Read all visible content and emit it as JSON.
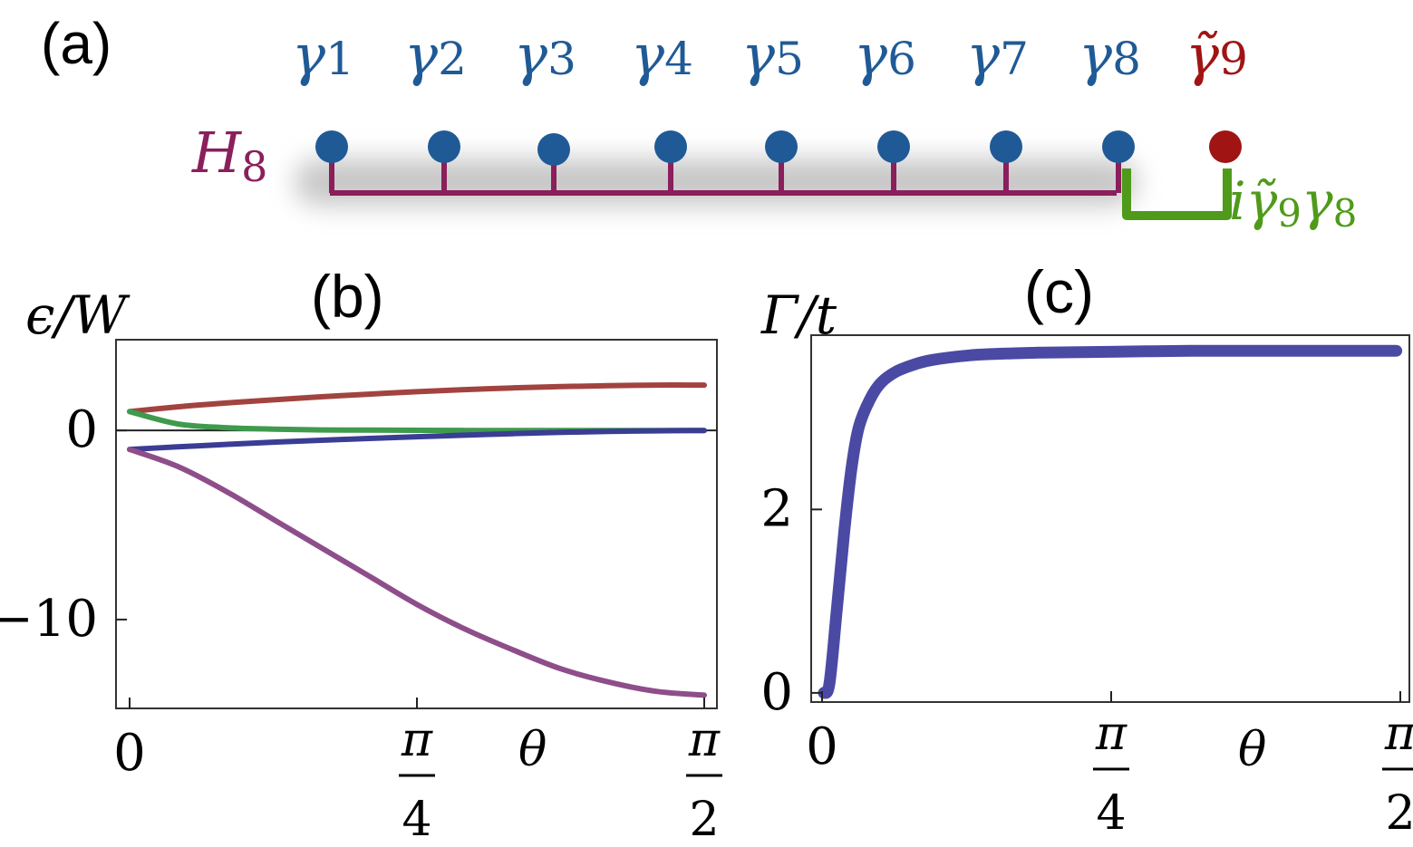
{
  "panel_a": {
    "label": "(a)",
    "hamiltonian": {
      "symbol": "H",
      "subscript": "8",
      "color": "#8a1f5c"
    },
    "sites": [
      {
        "symbol": "γ",
        "subscript": "1",
        "color": "#1f5a96"
      },
      {
        "symbol": "γ",
        "subscript": "2",
        "color": "#1f5a96"
      },
      {
        "symbol": "γ",
        "subscript": "3",
        "color": "#1f5a96"
      },
      {
        "symbol": "γ",
        "subscript": "4",
        "color": "#1f5a96"
      },
      {
        "symbol": "γ",
        "subscript": "5",
        "color": "#1f5a96"
      },
      {
        "symbol": "γ",
        "subscript": "6",
        "color": "#1f5a96"
      },
      {
        "symbol": "γ",
        "subscript": "7",
        "color": "#1f5a96"
      },
      {
        "symbol": "γ",
        "subscript": "8",
        "color": "#1f5a96"
      },
      {
        "symbol": "γ̃",
        "subscript": "9",
        "color": "#a01414"
      }
    ],
    "coupling": {
      "i": "i",
      "first": "γ̃",
      "first_sub": "9",
      "second": "γ",
      "second_sub": "8",
      "color": "#4f9a1a"
    }
  },
  "chart_data": [
    {
      "type": "line",
      "panel_label": "(b)",
      "xlabel": "θ",
      "ylabel": "ϵ/W",
      "xlim": [
        0,
        1.5708
      ],
      "ylim": [
        -14.7,
        4.8
      ],
      "x_ticks": [
        {
          "value": 0,
          "label": "0"
        },
        {
          "value": 0.7854,
          "num": "π",
          "den": "4"
        },
        {
          "value": 1.5708,
          "num": "π",
          "den": "2"
        }
      ],
      "y_ticks": [
        {
          "value": 0,
          "label": "0"
        },
        {
          "value": -10,
          "label": "−10"
        }
      ],
      "zero_line": true,
      "grid": false,
      "x": [
        0,
        0.1309,
        0.2618,
        0.3927,
        0.5236,
        0.6545,
        0.7854,
        0.9163,
        1.0472,
        1.1781,
        1.309,
        1.4399,
        1.5708
      ],
      "series": [
        {
          "color": "#a2433f",
          "values": [
            1.0,
            1.25,
            1.45,
            1.62,
            1.78,
            1.92,
            2.05,
            2.16,
            2.25,
            2.32,
            2.37,
            2.4,
            2.4
          ]
        },
        {
          "color": "#3f9a4e",
          "values": [
            1.0,
            0.35,
            0.15,
            0.07,
            0.03,
            0.02,
            0.01,
            0.0,
            0.0,
            0.0,
            0.0,
            0.0,
            0.0
          ]
        },
        {
          "color": "#3a3d94",
          "values": [
            -1.0,
            -0.87,
            -0.74,
            -0.62,
            -0.52,
            -0.42,
            -0.33,
            -0.25,
            -0.17,
            -0.1,
            -0.05,
            -0.02,
            0.0
          ]
        },
        {
          "color": "#8e4e8a",
          "values": [
            -1.0,
            -1.9,
            -3.2,
            -4.7,
            -6.2,
            -7.7,
            -9.2,
            -10.5,
            -11.6,
            -12.6,
            -13.3,
            -13.8,
            -14.0
          ]
        }
      ]
    },
    {
      "type": "line",
      "panel_label": "(c)",
      "xlabel": "θ",
      "ylabel": "Γ/t",
      "xlim": [
        0,
        1.5708
      ],
      "ylim": [
        -0.1,
        3.9
      ],
      "x_ticks": [
        {
          "value": 0,
          "label": "0"
        },
        {
          "value": 0.7854,
          "num": "π",
          "den": "4"
        },
        {
          "value": 1.5708,
          "num": "π",
          "den": "2"
        }
      ],
      "y_ticks": [
        {
          "value": 0,
          "label": "0"
        },
        {
          "value": 2,
          "label": "2"
        }
      ],
      "grid": false,
      "x": [
        0.005,
        0.02,
        0.04,
        0.06,
        0.08,
        0.1,
        0.13,
        0.16,
        0.2,
        0.25,
        0.3,
        0.4,
        0.5,
        0.6,
        0.8,
        1.0,
        1.2,
        1.4,
        1.56
      ],
      "series": [
        {
          "color": "#4a4aa5",
          "values": [
            0.0,
            0.1,
            0.9,
            1.75,
            2.45,
            2.9,
            3.2,
            3.38,
            3.5,
            3.58,
            3.63,
            3.68,
            3.7,
            3.71,
            3.72,
            3.73,
            3.73,
            3.73,
            3.73
          ]
        }
      ]
    }
  ]
}
